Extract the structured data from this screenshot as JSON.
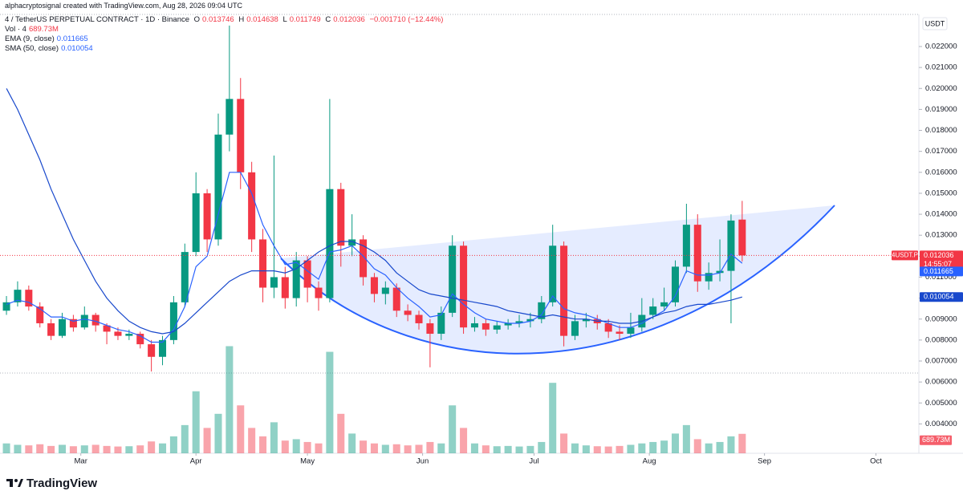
{
  "header": {
    "attribution": "alphacryptosignal created with TradingView.com, Aug 28, 2026 09:04 UTC",
    "symbol": "4 / TetherUS PERPETUAL CONTRACT · 1D · Binance",
    "ohlc_labels": [
      "O",
      "H",
      "L",
      "C"
    ],
    "change": "−0.001710 (−12.44%)",
    "currency": "USDT",
    "symbol_tag": "4USDT.P",
    "countdown": "14:55:07"
  },
  "footer": {
    "brand": "TradingView"
  },
  "chart_data": {
    "type": "candlestick",
    "up_color": "#089981",
    "down_color": "#f23645",
    "open": [
      0.0094,
      0.0098,
      0.0104,
      0.0096,
      0.0088,
      0.0082,
      0.009,
      0.0086,
      0.0092,
      0.0087,
      0.0084,
      0.0082,
      0.0083,
      0.0078,
      0.0072,
      0.008,
      0.0098,
      0.0122,
      0.015,
      0.0128,
      0.0178,
      0.0195,
      0.016,
      0.0128,
      0.0105,
      0.011,
      0.01,
      0.0118,
      0.0105,
      0.01,
      0.0152,
      0.0125,
      0.0128,
      0.011,
      0.0102,
      0.0105,
      0.0094,
      0.0092,
      0.0088,
      0.0083,
      0.0093,
      0.0125,
      0.0086,
      0.0088,
      0.0085,
      0.0087,
      0.0088,
      0.0089,
      0.009,
      0.0098,
      0.0125,
      0.0082,
      0.0089,
      0.009,
      0.0088,
      0.0084,
      0.0083,
      0.0086,
      0.0092,
      0.0096,
      0.0098,
      0.0115,
      0.0135,
      0.0108,
      0.0112,
      0.0113,
      0.013746
    ],
    "high": [
      0.0101,
      0.0108,
      0.0106,
      0.0098,
      0.009,
      0.0093,
      0.0092,
      0.0096,
      0.0093,
      0.0088,
      0.0086,
      0.0085,
      0.0084,
      0.008,
      0.0082,
      0.0101,
      0.0126,
      0.016,
      0.0152,
      0.0188,
      0.023,
      0.0205,
      0.0165,
      0.0133,
      0.0168,
      0.0115,
      0.0122,
      0.012,
      0.0108,
      0.0195,
      0.0155,
      0.014,
      0.013,
      0.0112,
      0.0108,
      0.0107,
      0.0097,
      0.0094,
      0.009,
      0.0096,
      0.013,
      0.0127,
      0.0091,
      0.009,
      0.0089,
      0.009,
      0.0092,
      0.0093,
      0.0101,
      0.0135,
      0.0127,
      0.0092,
      0.0093,
      0.0092,
      0.009,
      0.0087,
      0.0093,
      0.01,
      0.01,
      0.0105,
      0.0118,
      0.0145,
      0.014,
      0.0117,
      0.0128,
      0.014,
      0.014638
    ],
    "low": [
      0.0092,
      0.0096,
      0.0094,
      0.0086,
      0.008,
      0.0081,
      0.0084,
      0.0085,
      0.0084,
      0.0078,
      0.008,
      0.008,
      0.0076,
      0.0065,
      0.0068,
      0.0078,
      0.0096,
      0.012,
      0.0122,
      0.0125,
      0.017,
      0.0152,
      0.0122,
      0.0098,
      0.01,
      0.0095,
      0.0096,
      0.0098,
      0.0094,
      0.0098,
      0.0115,
      0.012,
      0.0106,
      0.0098,
      0.0097,
      0.0091,
      0.0089,
      0.0085,
      0.0067,
      0.008,
      0.0091,
      0.0083,
      0.0084,
      0.0082,
      0.0083,
      0.0085,
      0.0086,
      0.0086,
      0.0088,
      0.0096,
      0.0077,
      0.008,
      0.0086,
      0.0085,
      0.0081,
      0.008,
      0.0081,
      0.0084,
      0.009,
      0.0094,
      0.0096,
      0.0112,
      0.0103,
      0.0104,
      0.0108,
      0.0088,
      0.011749
    ],
    "close": [
      0.0098,
      0.0104,
      0.0096,
      0.0088,
      0.0082,
      0.009,
      0.0086,
      0.0092,
      0.0087,
      0.0084,
      0.0082,
      0.0083,
      0.0078,
      0.0072,
      0.008,
      0.0098,
      0.0122,
      0.015,
      0.0128,
      0.0178,
      0.0195,
      0.016,
      0.0128,
      0.0105,
      0.011,
      0.01,
      0.0118,
      0.0105,
      0.01,
      0.0152,
      0.0125,
      0.0128,
      0.011,
      0.0102,
      0.0105,
      0.0094,
      0.0092,
      0.0088,
      0.0083,
      0.0093,
      0.0125,
      0.0086,
      0.0088,
      0.0085,
      0.0087,
      0.0088,
      0.0089,
      0.009,
      0.0098,
      0.0125,
      0.0082,
      0.0089,
      0.009,
      0.0088,
      0.0084,
      0.0083,
      0.0086,
      0.0092,
      0.0096,
      0.0098,
      0.0115,
      0.0135,
      0.0108,
      0.0112,
      0.0113,
      0.0137,
      0.012036
    ],
    "volume": {
      "name": "Vol · 4",
      "last_label": "689.73M",
      "values": [
        350000000,
        300000000,
        280000000,
        320000000,
        260000000,
        300000000,
        250000000,
        280000000,
        300000000,
        260000000,
        240000000,
        250000000,
        280000000,
        420000000,
        350000000,
        600000000,
        1000000000,
        2200000000,
        900000000,
        1400000000,
        3800000000,
        1700000000,
        900000000,
        600000000,
        1100000000,
        450000000,
        500000000,
        400000000,
        350000000,
        3600000000,
        1400000000,
        700000000,
        450000000,
        350000000,
        300000000,
        320000000,
        280000000,
        300000000,
        400000000,
        350000000,
        1700000000,
        900000000,
        350000000,
        280000000,
        250000000,
        260000000,
        240000000,
        260000000,
        400000000,
        2500000000,
        700000000,
        350000000,
        280000000,
        250000000,
        240000000,
        260000000,
        300000000,
        350000000,
        400000000,
        450000000,
        700000000,
        1000000000,
        500000000,
        350000000,
        400000000,
        600000000,
        689730000
      ]
    },
    "series": [
      {
        "name": "EMA (9, close)",
        "color": "#2962ff",
        "values": [
          0.0097,
          0.0099,
          0.0098,
          0.0095,
          0.0091,
          0.0091,
          0.0089,
          0.009,
          0.0089,
          0.0087,
          0.0085,
          0.0084,
          0.0082,
          0.0079,
          0.0079,
          0.0085,
          0.0096,
          0.0115,
          0.012,
          0.014,
          0.016,
          0.016,
          0.015,
          0.0135,
          0.0125,
          0.0116,
          0.0117,
          0.0113,
          0.0109,
          0.0122,
          0.0123,
          0.0125,
          0.012,
          0.0114,
          0.0111,
          0.0105,
          0.01,
          0.0096,
          0.0091,
          0.0092,
          0.0102,
          0.0097,
          0.0093,
          0.009,
          0.0089,
          0.0088,
          0.0088,
          0.0089,
          0.0092,
          0.0101,
          0.0095,
          0.0093,
          0.0092,
          0.009,
          0.0088,
          0.0086,
          0.0086,
          0.0088,
          0.0091,
          0.0094,
          0.0101,
          0.0113,
          0.0111,
          0.0111,
          0.0112,
          0.0121,
          0.011665
        ]
      },
      {
        "name": "SMA (50, close)",
        "color": "#1848cc",
        "values": [
          0.02,
          0.019,
          0.0178,
          0.0166,
          0.0152,
          0.014,
          0.0128,
          0.0118,
          0.0108,
          0.01,
          0.0094,
          0.0089,
          0.0086,
          0.0084,
          0.0083,
          0.0084,
          0.0088,
          0.0093,
          0.0098,
          0.0103,
          0.0108,
          0.0111,
          0.0113,
          0.0113,
          0.0113,
          0.0112,
          0.0114,
          0.0118,
          0.0122,
          0.0125,
          0.0127,
          0.0127,
          0.0125,
          0.0122,
          0.0118,
          0.0112,
          0.0108,
          0.0104,
          0.0102,
          0.0101,
          0.01,
          0.0099,
          0.0098,
          0.0097,
          0.0096,
          0.0094,
          0.0093,
          0.0092,
          0.0091,
          0.0092,
          0.0091,
          0.009,
          0.009,
          0.0089,
          0.0089,
          0.0088,
          0.0088,
          0.0089,
          0.0091,
          0.0093,
          0.0094,
          0.0096,
          0.0097,
          0.0097,
          0.0098,
          0.0099,
          0.010054
        ]
      }
    ],
    "ylim": [
      0.0026,
      0.02353
    ],
    "yticks": [
      {
        "value": 0.004,
        "label": "0.004000"
      },
      {
        "value": 0.005,
        "label": "0.005000"
      },
      {
        "value": 0.006,
        "label": "0.006000"
      },
      {
        "value": 0.007,
        "label": "0.007000"
      },
      {
        "value": 0.008,
        "label": "0.008000"
      },
      {
        "value": 0.009,
        "label": "0.009000"
      },
      {
        "value": 0.01,
        "label": "0.010000"
      },
      {
        "value": 0.011,
        "label": "0.011000"
      },
      {
        "value": 0.012,
        "label": "0.012000"
      },
      {
        "value": 0.013,
        "label": "0.013000"
      },
      {
        "value": 0.014,
        "label": "0.014000"
      },
      {
        "value": 0.015,
        "label": "0.015000"
      },
      {
        "value": 0.016,
        "label": "0.016000"
      },
      {
        "value": 0.017,
        "label": "0.017000"
      },
      {
        "value": 0.018,
        "label": "0.018000"
      },
      {
        "value": 0.019,
        "label": "0.019000"
      },
      {
        "value": 0.02,
        "label": "0.020000"
      },
      {
        "value": 0.021,
        "label": "0.021000"
      },
      {
        "value": 0.022,
        "label": "0.022000"
      }
    ],
    "xlim": [
      -0.58,
      81.85
    ],
    "xticks": [
      {
        "value": 6.67,
        "label": "Mar"
      },
      {
        "value": 17,
        "label": "Apr"
      },
      {
        "value": 27,
        "label": "May"
      },
      {
        "value": 37.33,
        "label": "Jun"
      },
      {
        "value": 47.33,
        "label": "Jul"
      },
      {
        "value": 57.67,
        "label": "Aug"
      },
      {
        "value": 68,
        "label": "Sep"
      },
      {
        "value": 78,
        "label": "Oct"
      }
    ],
    "vlim": [
      0,
      3900000000
    ],
    "grid": false
  }
}
